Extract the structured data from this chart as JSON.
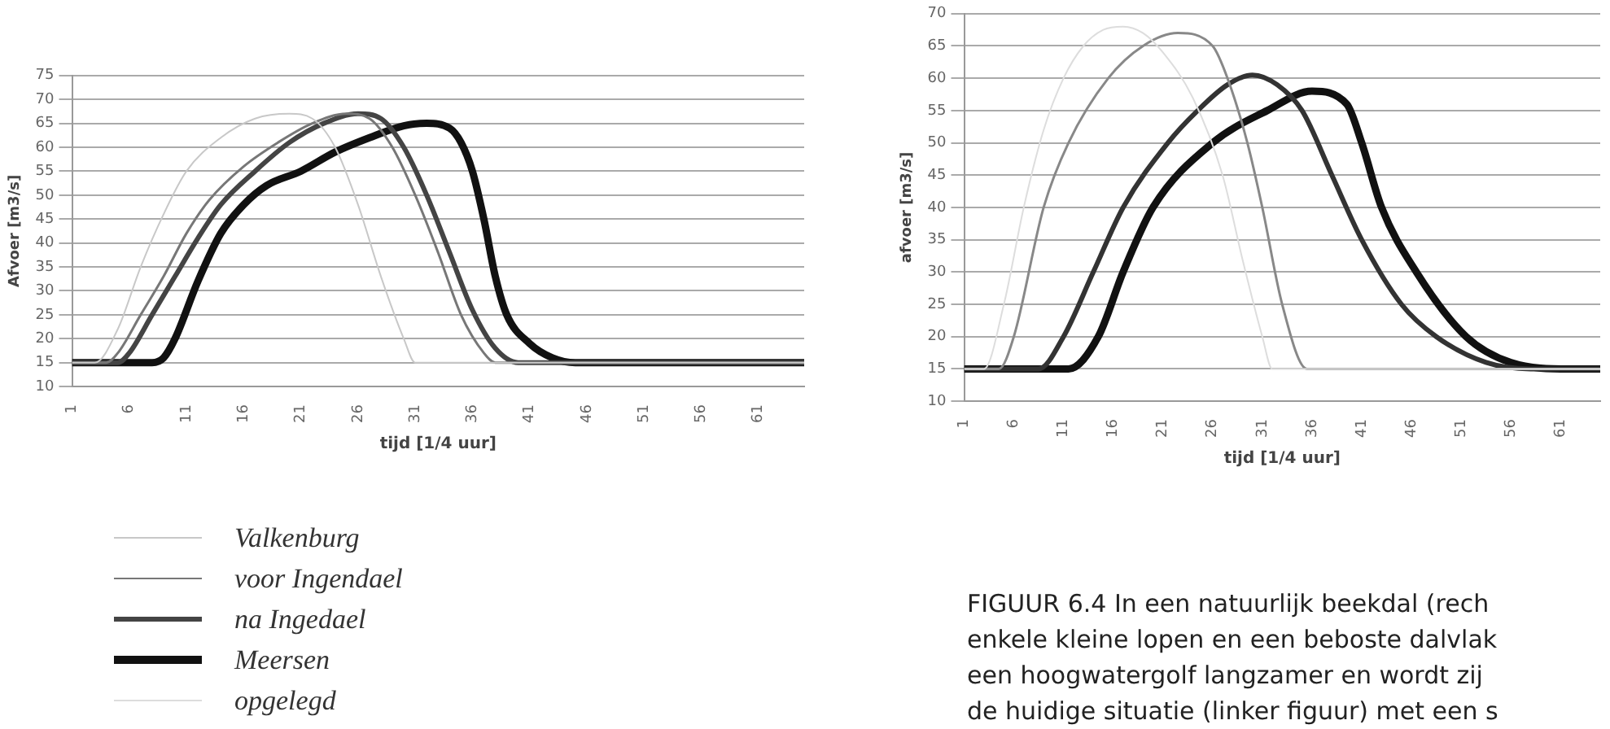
{
  "chart_data": [
    {
      "type": "line",
      "xlabel": "tijd [1/4 uur]",
      "ylabel": "Afvoer [m3/s]",
      "xlim": [
        1,
        65
      ],
      "xticks": [
        1,
        6,
        11,
        16,
        21,
        26,
        31,
        36,
        41,
        46,
        51,
        56,
        61
      ],
      "ylim": [
        10,
        75
      ],
      "yticks": [
        10,
        15,
        20,
        25,
        30,
        35,
        40,
        45,
        50,
        55,
        60,
        65,
        70,
        75
      ],
      "grid": "y",
      "legend": "bottom",
      "marker": "none",
      "series": [
        {
          "name": "Valkenburg",
          "color": "#c8c8c8",
          "x": [
            1,
            3,
            5,
            7,
            9,
            11,
            14,
            17,
            20,
            22,
            24,
            26,
            28,
            30,
            31,
            65
          ],
          "values": [
            15,
            15,
            22,
            35,
            46,
            55,
            62,
            66,
            67,
            66,
            60,
            48,
            33,
            20,
            15,
            15
          ]
        },
        {
          "name": "voor Ingendael",
          "color": "#777777",
          "x": [
            1,
            4,
            5,
            7,
            9,
            11,
            13,
            16,
            19,
            22,
            25,
            27,
            29,
            31,
            33,
            35,
            37,
            38,
            65
          ],
          "values": [
            15,
            15,
            17,
            25,
            33,
            42,
            49,
            56,
            61,
            65,
            67,
            66,
            60,
            50,
            38,
            25,
            17,
            15,
            15
          ]
        },
        {
          "name": "na Ingedael",
          "color": "#444444",
          "x": [
            1,
            5,
            6,
            8,
            10,
            12,
            14,
            17,
            20,
            23,
            26,
            28,
            30,
            32,
            34,
            36,
            38,
            40,
            65
          ],
          "values": [
            15,
            15,
            17,
            25,
            33,
            41,
            48,
            55,
            61,
            65,
            67,
            66,
            60,
            50,
            38,
            26,
            18,
            15,
            15
          ]
        },
        {
          "name": "Meersen",
          "color": "#111111",
          "x": [
            1,
            8,
            9,
            10,
            12,
            14,
            16,
            18,
            21,
            24,
            27,
            30,
            32,
            34,
            35,
            36,
            37,
            38,
            39,
            41,
            43,
            45,
            65
          ],
          "values": [
            15,
            15,
            16,
            20,
            32,
            42,
            48,
            52,
            55,
            59,
            62,
            64.5,
            65,
            64,
            61,
            55,
            45,
            33,
            25,
            19,
            16,
            15,
            15
          ]
        }
      ]
    },
    {
      "type": "line",
      "xlabel": "tijd [1/4 uur]",
      "ylabel": "afvoer [m3/s]",
      "xlim": [
        1,
        65
      ],
      "xticks": [
        1,
        6,
        11,
        16,
        21,
        26,
        31,
        36,
        41,
        46,
        51,
        56,
        61
      ],
      "ylim": [
        10,
        70
      ],
      "yticks": [
        10,
        15,
        20,
        25,
        30,
        35,
        40,
        45,
        50,
        55,
        60,
        65,
        70
      ],
      "grid": "y",
      "marker": "none",
      "annotations": [
        "FIGUUR 6.4  In een natuurlijk beekdal (rech",
        "enkele kleine lopen en een beboste dalvlak",
        "een hoogwatergolf langzamer en wordt zij",
        "de huidige situatie (linker figuur) met een s"
      ],
      "series": [
        {
          "name": "opgelegd",
          "color": "#dddddd",
          "x": [
            1,
            3,
            5,
            7,
            9,
            11,
            13,
            15,
            17,
            19,
            21,
            24,
            27,
            29,
            31,
            32,
            65
          ],
          "values": [
            15,
            15,
            25,
            40,
            52,
            60,
            65,
            67.5,
            68,
            67,
            64,
            57,
            45,
            32,
            20,
            15,
            15
          ]
        },
        {
          "color": "#888888",
          "x": [
            1,
            4.5,
            6,
            9,
            11.5,
            15.5,
            19,
            22.5,
            26,
            27.5,
            29.5,
            31,
            33,
            35.5,
            65
          ],
          "values": [
            15,
            15,
            20,
            40,
            50,
            60,
            65,
            67,
            65,
            60,
            50,
            40,
            25,
            15,
            15
          ]
        },
        {
          "color": "#333333",
          "x": [
            1,
            8.5,
            11,
            14,
            17,
            21.5,
            24.5,
            27.5,
            30,
            32.5,
            35,
            38,
            41,
            45,
            48.5,
            53.5,
            58,
            65
          ],
          "values": [
            15,
            15,
            20,
            30,
            40,
            50,
            55,
            59,
            60.5,
            59,
            55,
            45,
            35,
            25,
            20,
            16,
            15,
            15
          ]
        },
        {
          "color": "#111111",
          "x": [
            1,
            11.5,
            14.5,
            17,
            20,
            26,
            31.5,
            36,
            39.5,
            41,
            43,
            46.5,
            51.5,
            56,
            62,
            65
          ],
          "values": [
            15,
            15,
            20,
            30,
            40,
            50,
            55,
            58,
            56,
            50,
            40,
            30,
            20,
            16,
            15,
            15
          ]
        }
      ]
    }
  ]
}
